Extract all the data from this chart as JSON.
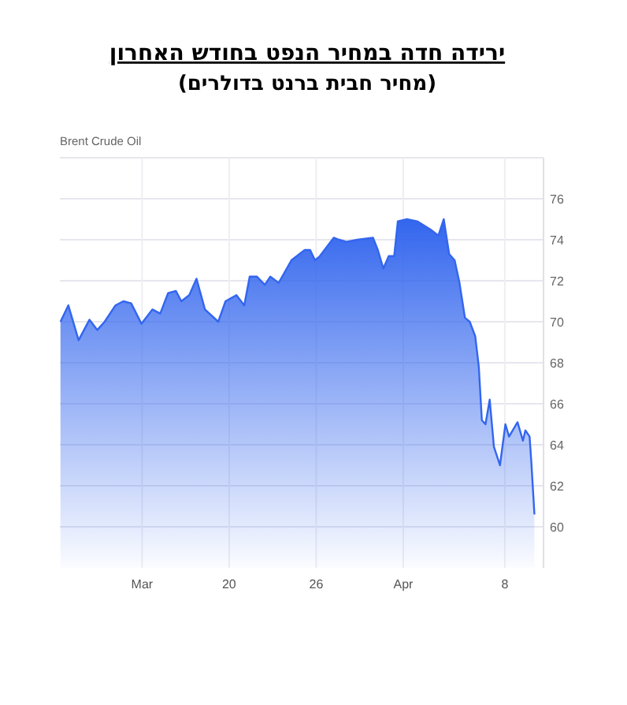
{
  "chart_data": {
    "type": "area",
    "title": "ירידה חדה במחיר הנפט בחודש האחרון",
    "subtitle": "(מחיר חבית ברנט בדולרים)",
    "annotations": [
      "Brent Crude Oil"
    ],
    "x": [
      "--03-08T09:00",
      "--03-08T22:00",
      "--03-09T02:00",
      "--03-09T15:00",
      "--03-10T09:00",
      "--03-10T22:00",
      "--03-11T10:00",
      "--03-12T04:00",
      "--03-12T17:00",
      "--03-13T06:00",
      "--03-13T23:00",
      "--03-14T17:00",
      "--03-15T06:00",
      "--03-15T19:00",
      "--03-16T08:00",
      "--03-16T17:00",
      "--03-17T06:00",
      "--03-17T18:00",
      "--03-18T08:00",
      "--03-19T06:00",
      "--03-19T18:00",
      "--03-20T12:00",
      "--03-21T01:00",
      "--03-21T10:00",
      "--03-21T22:00",
      "--03-22T11:00",
      "--03-22T20:00",
      "--03-23T10:00",
      "--03-24T07:00",
      "--03-25T05:00",
      "--03-25T14:00",
      "--03-25T22:00",
      "--03-26T06:00",
      "--03-27T05:00",
      "--03-27T14:00",
      "--03-28T02:00",
      "--03-28T20:00",
      "--03-29T22:00",
      "--03-30T06:00",
      "--03-30T15:00",
      "--03-31T00:00",
      "--03-31T09:00",
      "--03-31T15:00",
      "--04-01T06:00",
      "--04-01T23:00",
      "--04-02T21:00",
      "--04-03T10:00",
      "--04-03T19:00",
      "--04-04T04:00",
      "--04-04T13:00",
      "--04-04T21:00",
      "--04-05T06:00",
      "--04-05T14:00",
      "--04-05T23:00",
      "--04-06T05:00",
      "--04-06T10:00",
      "--04-06T16:00",
      "--04-06T23:00",
      "--04-07T06:00",
      "--04-07T16:00",
      "--04-08T01:00",
      "--04-08T07:00",
      "--04-08T21:00",
      "--04-09T06:00",
      "--04-09T10:00",
      "--04-09T17:00",
      "--04-09T20:00",
      "--04-10T01:00"
    ],
    "series": [
      {
        "color": "#3366ee",
        "values": [
          70.0,
          70.8,
          70.4,
          69.1,
          70.1,
          69.6,
          70.0,
          70.8,
          71.0,
          70.9,
          69.9,
          70.6,
          70.4,
          71.4,
          71.5,
          71.0,
          71.3,
          72.1,
          70.6,
          70.0,
          71.0,
          71.3,
          70.8,
          72.2,
          72.2,
          71.8,
          72.2,
          71.9,
          73.0,
          73.5,
          73.5,
          73.0,
          73.2,
          74.1,
          74.0,
          73.9,
          74.0,
          74.1,
          73.5,
          72.6,
          73.2,
          73.2,
          74.9,
          75.0,
          74.9,
          74.5,
          74.2,
          75.0,
          73.3,
          73.0,
          71.9,
          70.2,
          70.0,
          69.3,
          67.8,
          65.2,
          65.0,
          66.2,
          63.9,
          63.0,
          65.0,
          64.4,
          65.1,
          64.2,
          64.7,
          64.4,
          63.1,
          60.6
        ]
      }
    ],
    "xlim": [
      "--03-08T08:00",
      "--04-10T16:00"
    ],
    "xticks": [
      {
        "value": "--03-14",
        "label": "Mar"
      },
      {
        "value": "--03-20",
        "label": "20"
      },
      {
        "value": "--03-26",
        "label": "26"
      },
      {
        "value": "--04-01",
        "label": "Apr"
      },
      {
        "value": "--04-08",
        "label": "8"
      }
    ],
    "ylim": [
      58,
      78
    ],
    "yticks": [
      {
        "value": 60,
        "label": "60"
      },
      {
        "value": 62,
        "label": "62"
      },
      {
        "value": 64,
        "label": "64"
      },
      {
        "value": 66,
        "label": "66"
      },
      {
        "value": 68,
        "label": "68"
      },
      {
        "value": 70,
        "label": "70"
      },
      {
        "value": 72,
        "label": "72"
      },
      {
        "value": 74,
        "label": "74"
      },
      {
        "value": 76,
        "label": "76"
      },
      {
        "value": 78,
        "label": null
      }
    ],
    "grid": true
  }
}
